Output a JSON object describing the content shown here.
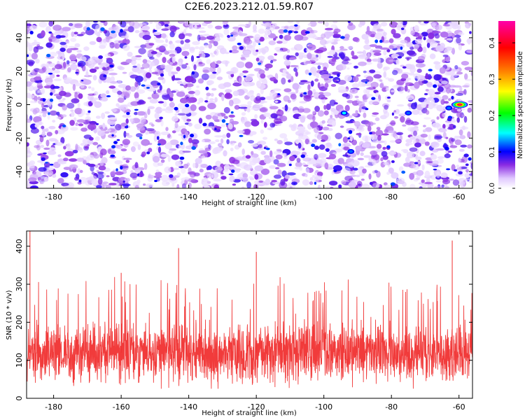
{
  "title": "C2E6.2023.212.01.59.R07",
  "chart_data": [
    {
      "type": "heatmap",
      "title": "C2E6.2023.212.01.59.R07",
      "xlabel": "Height of straight line (km)",
      "ylabel": "Frequency (Hz)",
      "xlim": [
        -188,
        -56
      ],
      "ylim": [
        -50,
        50
      ],
      "xticks": [
        -180,
        -160,
        -140,
        -120,
        -100,
        -80,
        -60
      ],
      "yticks": [
        -40,
        -20,
        0,
        20,
        40
      ],
      "colorbar": {
        "label": "Normalized spectral amplitude",
        "range": [
          0.0,
          0.46
        ],
        "ticks": [
          0.0,
          0.1,
          0.2,
          0.3,
          0.4
        ],
        "colormap": [
          "#ffffff",
          "#8a2be2",
          "#0000ff",
          "#00ffff",
          "#00ff00",
          "#ffff00",
          "#ff8000",
          "#ff0000",
          "#ff00aa"
        ]
      },
      "background_level": 0.06,
      "peak": {
        "x": -60,
        "y": 0,
        "value": 0.46
      },
      "notable_features": [
        {
          "x": -94,
          "y": -5,
          "value": 0.15
        },
        {
          "x": -92,
          "y": -28,
          "value": 0.12
        },
        {
          "x": -75,
          "y": -5,
          "value": 0.12
        },
        {
          "x": -63,
          "y": -2,
          "value": 0.12
        }
      ]
    },
    {
      "type": "line",
      "xlabel": "Height of straight line (km)",
      "ylabel": "SNR (10 * v/v)",
      "xlim": [
        -188,
        -56
      ],
      "ylim": [
        0,
        440
      ],
      "xticks": [
        -180,
        -160,
        -140,
        -120,
        -100,
        -80,
        -60
      ],
      "yticks": [
        0,
        100,
        200,
        300,
        400
      ],
      "color": "#f03030",
      "series": [
        {
          "summary": {
            "baseline": 120,
            "typical_band": [
              50,
              230
            ],
            "max": 440,
            "max_x": -187
          }
        }
      ],
      "peaks": [
        {
          "x": -187,
          "y": 440
        },
        {
          "x": -160,
          "y": 330
        },
        {
          "x": -143,
          "y": 395
        },
        {
          "x": -120,
          "y": 385
        },
        {
          "x": -62,
          "y": 415
        }
      ]
    }
  ]
}
